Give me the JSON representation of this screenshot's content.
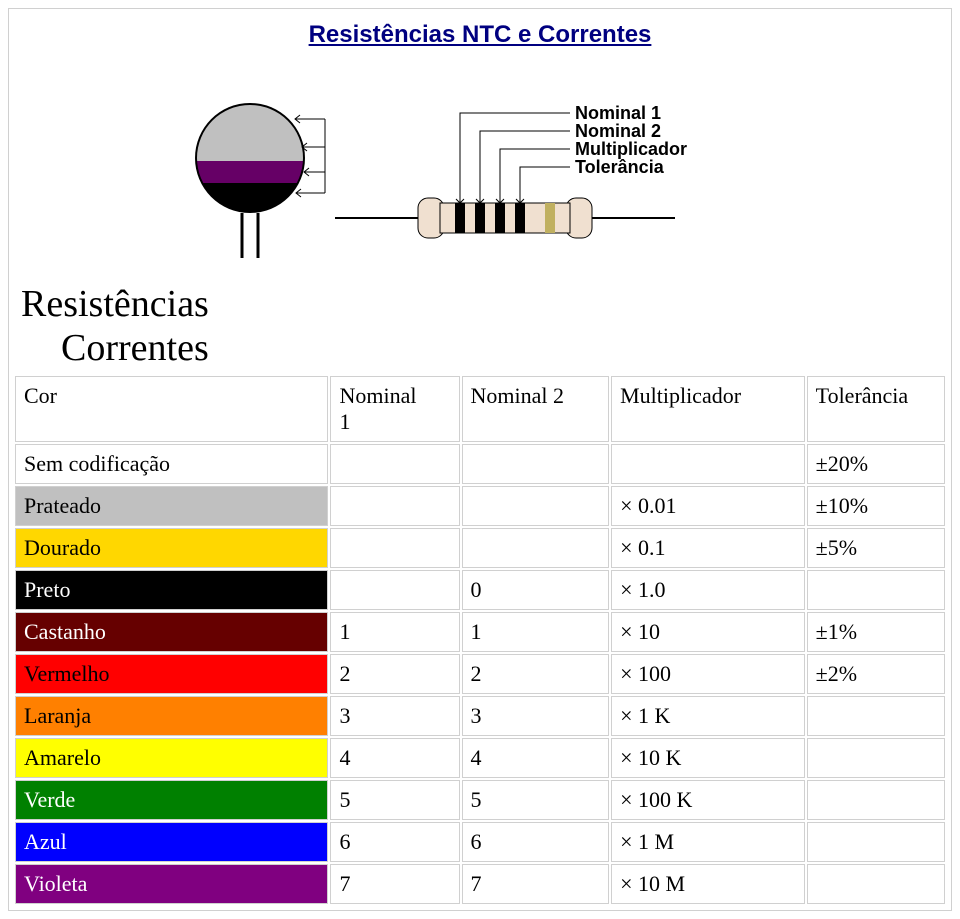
{
  "header": {
    "title": "Resistências NTC e Correntes"
  },
  "diagram": {
    "labels": {
      "nominal1": "Nominal 1",
      "nominal2": "Nominal 2",
      "multiplicador": "Multiplicador",
      "tolerancia": "Tolerância"
    },
    "ntc_bands": [
      "#c0c0c0",
      "#c0c0c0",
      "#660066",
      "#000000"
    ],
    "resistor_body": "#f0e0d0",
    "resistor_bands": [
      "#000000",
      "#000000",
      "#000000",
      "#000000",
      "#c0b060"
    ]
  },
  "section": {
    "line1": "Resistências",
    "line2": "Correntes"
  },
  "table": {
    "headers": {
      "cor": "Cor",
      "nominal1": "Nominal\n1",
      "nominal2": "Nominal 2",
      "multiplicador": "Multiplicador",
      "tolerancia": "Tolerância"
    },
    "rows": [
      {
        "cor": "Sem codificação",
        "bg": "#ffffff",
        "fg": "#000000",
        "n1": "",
        "n2": "",
        "mult": "",
        "tol": "±20%"
      },
      {
        "cor": "Prateado",
        "bg": "#c0c0c0",
        "fg": "#000000",
        "n1": "",
        "n2": "",
        "mult": "× 0.01",
        "tol": "±10%"
      },
      {
        "cor": "Dourado",
        "bg": "#ffd700",
        "fg": "#000000",
        "n1": "",
        "n2": "",
        "mult": "× 0.1",
        "tol": "±5%"
      },
      {
        "cor": "Preto",
        "bg": "#000000",
        "fg": "#ffffff",
        "n1": "",
        "n2": "0",
        "mult": "× 1.0",
        "tol": ""
      },
      {
        "cor": "Castanho",
        "bg": "#660000",
        "fg": "#ffffff",
        "n1": "1",
        "n2": "1",
        "mult": "× 10",
        "tol": "±1%"
      },
      {
        "cor": "Vermelho",
        "bg": "#ff0000",
        "fg": "#000000",
        "n1": "2",
        "n2": "2",
        "mult": "× 100",
        "tol": "±2%"
      },
      {
        "cor": "Laranja",
        "bg": "#ff8000",
        "fg": "#000000",
        "n1": "3",
        "n2": "3",
        "mult": "× 1 K",
        "tol": ""
      },
      {
        "cor": "Amarelo",
        "bg": "#ffff00",
        "fg": "#000000",
        "n1": "4",
        "n2": "4",
        "mult": "× 10 K",
        "tol": ""
      },
      {
        "cor": "Verde",
        "bg": "#008000",
        "fg": "#ffffff",
        "n1": "5",
        "n2": "5",
        "mult": "× 100 K",
        "tol": ""
      },
      {
        "cor": "Azul",
        "bg": "#0000ff",
        "fg": "#ffffff",
        "n1": "6",
        "n2": "6",
        "mult": "× 1 M",
        "tol": ""
      },
      {
        "cor": "Violeta",
        "bg": "#800080",
        "fg": "#ffffff",
        "n1": "7",
        "n2": "7",
        "mult": "× 10 M",
        "tol": ""
      }
    ]
  }
}
